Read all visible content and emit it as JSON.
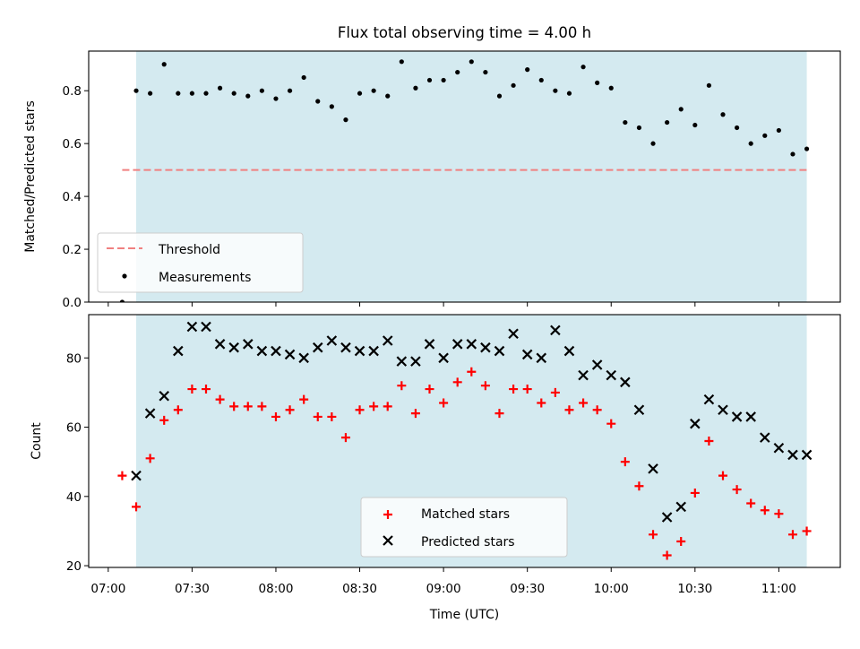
{
  "chart_data": {
    "title": "Flux total observing time = 4.00 h",
    "xlabel": "Time (UTC)",
    "x_ticks": [
      "07:00",
      "07:30",
      "08:00",
      "08:30",
      "09:00",
      "09:30",
      "10:00",
      "10:30",
      "11:00"
    ],
    "x_range": [
      "06:53",
      "11:22"
    ],
    "shaded_span": [
      "07:10",
      "11:10"
    ],
    "shade_color": "#d4eaf0",
    "panels": [
      {
        "type": "scatter",
        "ylabel": "Matched/Predicted stars",
        "ylim": [
          0,
          0.95
        ],
        "y_ticks": [
          "0.0",
          "0.2",
          "0.4",
          "0.6",
          "0.8"
        ],
        "legend": {
          "position": "lower-left",
          "entries": [
            "Threshold",
            "Measurements"
          ]
        },
        "threshold": {
          "name": "Threshold",
          "value": 0.5,
          "x_start": "07:05",
          "x_end": "11:10",
          "color": "#f08080"
        },
        "series": [
          {
            "name": "Measurements",
            "marker": "dot",
            "color": "#000000",
            "points": [
              [
                "07:05",
                0.0
              ],
              [
                "07:10",
                0.8
              ],
              [
                "07:15",
                0.79
              ],
              [
                "07:20",
                0.9
              ],
              [
                "07:25",
                0.79
              ],
              [
                "07:30",
                0.79
              ],
              [
                "07:35",
                0.79
              ],
              [
                "07:40",
                0.81
              ],
              [
                "07:45",
                0.79
              ],
              [
                "07:50",
                0.78
              ],
              [
                "07:55",
                0.8
              ],
              [
                "08:00",
                0.77
              ],
              [
                "08:05",
                0.8
              ],
              [
                "08:10",
                0.85
              ],
              [
                "08:15",
                0.76
              ],
              [
                "08:20",
                0.74
              ],
              [
                "08:25",
                0.69
              ],
              [
                "08:30",
                0.79
              ],
              [
                "08:35",
                0.8
              ],
              [
                "08:40",
                0.78
              ],
              [
                "08:45",
                0.91
              ],
              [
                "08:50",
                0.81
              ],
              [
                "08:55",
                0.84
              ],
              [
                "09:00",
                0.84
              ],
              [
                "09:05",
                0.87
              ],
              [
                "09:10",
                0.91
              ],
              [
                "09:15",
                0.87
              ],
              [
                "09:20",
                0.78
              ],
              [
                "09:25",
                0.82
              ],
              [
                "09:30",
                0.88
              ],
              [
                "09:35",
                0.84
              ],
              [
                "09:40",
                0.8
              ],
              [
                "09:45",
                0.79
              ],
              [
                "09:50",
                0.89
              ],
              [
                "09:55",
                0.83
              ],
              [
                "10:00",
                0.81
              ],
              [
                "10:05",
                0.68
              ],
              [
                "10:10",
                0.66
              ],
              [
                "10:15",
                0.6
              ],
              [
                "10:20",
                0.68
              ],
              [
                "10:25",
                0.73
              ],
              [
                "10:30",
                0.67
              ],
              [
                "10:35",
                0.82
              ],
              [
                "10:40",
                0.71
              ],
              [
                "10:45",
                0.66
              ],
              [
                "10:50",
                0.6
              ],
              [
                "10:55",
                0.63
              ],
              [
                "11:00",
                0.65
              ],
              [
                "11:05",
                0.56
              ],
              [
                "11:10",
                0.58
              ]
            ]
          }
        ]
      },
      {
        "type": "scatter",
        "ylabel": "Count",
        "ylim": [
          19.5,
          92.5
        ],
        "y_ticks": [
          "20",
          "40",
          "60",
          "80"
        ],
        "legend": {
          "position": "lower-center",
          "entries": [
            "Matched stars",
            "Predicted stars"
          ]
        },
        "series": [
          {
            "name": "Matched stars",
            "marker": "plus",
            "color": "#ff0000",
            "points": [
              [
                "07:05",
                46
              ],
              [
                "07:10",
                37
              ],
              [
                "07:15",
                51
              ],
              [
                "07:20",
                62
              ],
              [
                "07:25",
                65
              ],
              [
                "07:30",
                71
              ],
              [
                "07:35",
                71
              ],
              [
                "07:40",
                68
              ],
              [
                "07:45",
                66
              ],
              [
                "07:50",
                66
              ],
              [
                "07:55",
                66
              ],
              [
                "08:00",
                63
              ],
              [
                "08:05",
                65
              ],
              [
                "08:10",
                68
              ],
              [
                "08:15",
                63
              ],
              [
                "08:20",
                63
              ],
              [
                "08:25",
                57
              ],
              [
                "08:30",
                65
              ],
              [
                "08:35",
                66
              ],
              [
                "08:40",
                66
              ],
              [
                "08:45",
                72
              ],
              [
                "08:50",
                64
              ],
              [
                "08:55",
                71
              ],
              [
                "09:00",
                67
              ],
              [
                "09:05",
                73
              ],
              [
                "09:10",
                76
              ],
              [
                "09:15",
                72
              ],
              [
                "09:20",
                64
              ],
              [
                "09:25",
                71
              ],
              [
                "09:30",
                71
              ],
              [
                "09:35",
                67
              ],
              [
                "09:40",
                70
              ],
              [
                "09:45",
                65
              ],
              [
                "09:50",
                67
              ],
              [
                "09:55",
                65
              ],
              [
                "10:00",
                61
              ],
              [
                "10:05",
                50
              ],
              [
                "10:10",
                43
              ],
              [
                "10:15",
                29
              ],
              [
                "10:20",
                23
              ],
              [
                "10:25",
                27
              ],
              [
                "10:30",
                41
              ],
              [
                "10:35",
                56
              ],
              [
                "10:40",
                46
              ],
              [
                "10:45",
                42
              ],
              [
                "10:50",
                38
              ],
              [
                "10:55",
                36
              ],
              [
                "11:00",
                35
              ],
              [
                "11:05",
                29
              ],
              [
                "11:10",
                30
              ]
            ]
          },
          {
            "name": "Predicted stars",
            "marker": "x",
            "color": "#000000",
            "points": [
              [
                "07:10",
                46
              ],
              [
                "07:15",
                64
              ],
              [
                "07:20",
                69
              ],
              [
                "07:25",
                82
              ],
              [
                "07:30",
                89
              ],
              [
                "07:35",
                89
              ],
              [
                "07:40",
                84
              ],
              [
                "07:45",
                83
              ],
              [
                "07:50",
                84
              ],
              [
                "07:55",
                82
              ],
              [
                "08:00",
                82
              ],
              [
                "08:05",
                81
              ],
              [
                "08:10",
                80
              ],
              [
                "08:15",
                83
              ],
              [
                "08:20",
                85
              ],
              [
                "08:25",
                83
              ],
              [
                "08:30",
                82
              ],
              [
                "08:35",
                82
              ],
              [
                "08:40",
                85
              ],
              [
                "08:45",
                79
              ],
              [
                "08:50",
                79
              ],
              [
                "08:55",
                84
              ],
              [
                "09:00",
                80
              ],
              [
                "09:05",
                84
              ],
              [
                "09:10",
                84
              ],
              [
                "09:15",
                83
              ],
              [
                "09:20",
                82
              ],
              [
                "09:25",
                87
              ],
              [
                "09:30",
                81
              ],
              [
                "09:35",
                80
              ],
              [
                "09:40",
                88
              ],
              [
                "09:45",
                82
              ],
              [
                "09:50",
                75
              ],
              [
                "09:55",
                78
              ],
              [
                "10:00",
                75
              ],
              [
                "10:05",
                73
              ],
              [
                "10:10",
                65
              ],
              [
                "10:15",
                48
              ],
              [
                "10:20",
                34
              ],
              [
                "10:25",
                37
              ],
              [
                "10:30",
                61
              ],
              [
                "10:35",
                68
              ],
              [
                "10:40",
                65
              ],
              [
                "10:45",
                63
              ],
              [
                "10:50",
                63
              ],
              [
                "10:55",
                57
              ],
              [
                "11:00",
                54
              ],
              [
                "11:05",
                52
              ],
              [
                "11:10",
                52
              ]
            ]
          }
        ]
      }
    ]
  }
}
